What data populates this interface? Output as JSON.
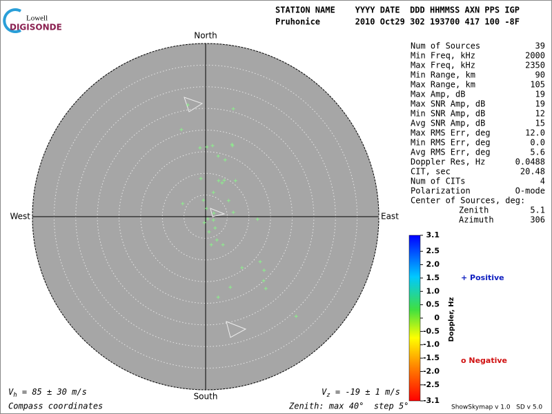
{
  "logo": {
    "top": "Lowell",
    "bottom": "DIGISONDE"
  },
  "header": {
    "line1": "STATION NAME    YYYY DATE  DDD HHMMSS AXN PPS IGP",
    "line2": "Pruhonice       2010 Oct29 302 193700 417 100 -8F"
  },
  "stats": {
    "rows": [
      [
        "Num of Sources",
        "39"
      ],
      [
        "Min Freq, kHz",
        "2000"
      ],
      [
        "Max Freq, kHz",
        "2350"
      ],
      [
        "Min Range, km",
        "90"
      ],
      [
        "Max Range, km",
        "105"
      ],
      [
        "Max Amp, dB",
        "19"
      ],
      [
        "Max SNR Amp, dB",
        "19"
      ],
      [
        "Min SNR Amp, dB",
        "12"
      ],
      [
        "Avg SNR Amp, dB",
        "15"
      ],
      [
        "Max RMS Err, deg",
        "12.0"
      ],
      [
        "Min RMS Err, deg",
        "0.0"
      ],
      [
        "Avg RMS Err, deg",
        "5.6"
      ],
      [
        "Doppler Res, Hz",
        "0.0488"
      ],
      [
        "CIT, sec",
        "20.48"
      ],
      [
        "Num of CITs",
        "4"
      ],
      [
        "Polarization",
        "O-mode"
      ]
    ],
    "center_title": "Center of Sources, deg:",
    "center_rows": [
      [
        "Zenith",
        "5.1"
      ],
      [
        "Azimuth",
        "306"
      ]
    ]
  },
  "chart_data": {
    "type": "skymap",
    "compass": {
      "north": "North",
      "south": "South",
      "east": "East",
      "west": "West"
    },
    "rlim": [
      0,
      40
    ],
    "rticks": [
      5,
      10,
      15,
      20,
      25,
      30,
      35,
      40
    ],
    "color": "#8cf08c",
    "x": [
      -4.1,
      6.4,
      -5.6,
      -1.3,
      0.3,
      1.6,
      6.1,
      6.2,
      2.9,
      4.5,
      -1.1,
      3.0,
      3.8,
      4.3,
      6.9,
      1.8,
      5.3,
      -0.5,
      -5.3,
      6.4,
      1.9,
      0.2,
      12.0,
      -0.3,
      1.8,
      2.2,
      0.8,
      2.6,
      4.0,
      1.3,
      8.4,
      12.6,
      13.5,
      13.4,
      13.9,
      5.7,
      2.9,
      20.9,
      0.5
    ],
    "y": [
      25.8,
      24.9,
      20.1,
      15.9,
      16.1,
      16.4,
      16.7,
      16.4,
      14.0,
      13.1,
      8.8,
      8.3,
      7.8,
      8.4,
      8.3,
      5.6,
      3.7,
      3.8,
      3.0,
      1.0,
      0.8,
      1.9,
      -0.6,
      -1.4,
      -0.8,
      -2.6,
      -3.5,
      -5.4,
      -6.5,
      -6.5,
      -11.8,
      -10.4,
      -12.4,
      -14.8,
      -16.6,
      -16.3,
      -18.6,
      -23.0,
      -0.5
    ],
    "colorbar": {
      "label": "Doppler, Hz",
      "lim": [
        -3.1,
        3.1
      ],
      "ticks": [
        3.1,
        2.5,
        {
          "value": 2,
          "label": "2.0"
        },
        1.5,
        {
          "value": 1,
          "label": "1.0"
        },
        0.5,
        0,
        -0.5,
        {
          "value": -1,
          "label": "-1.0"
        },
        -1.5,
        {
          "value": -2,
          "label": "-2.0"
        },
        -2.5,
        -3.1
      ]
    },
    "legend": {
      "positive": "+ Positive",
      "negative": "o Negative"
    },
    "vh": {
      "symbol": "V",
      "sub": "h",
      "rest": " = 85 ± 30 m/s"
    },
    "vz": {
      "symbol": "V",
      "sub": "z",
      "rest": " = -19 ± 1 m/s"
    },
    "footer_left": "Compass coordinates",
    "footer_mid": "Zenith: max 40°  step 5°",
    "footer_right": "ShowSkymap v 1.0   SD v 5.0"
  }
}
